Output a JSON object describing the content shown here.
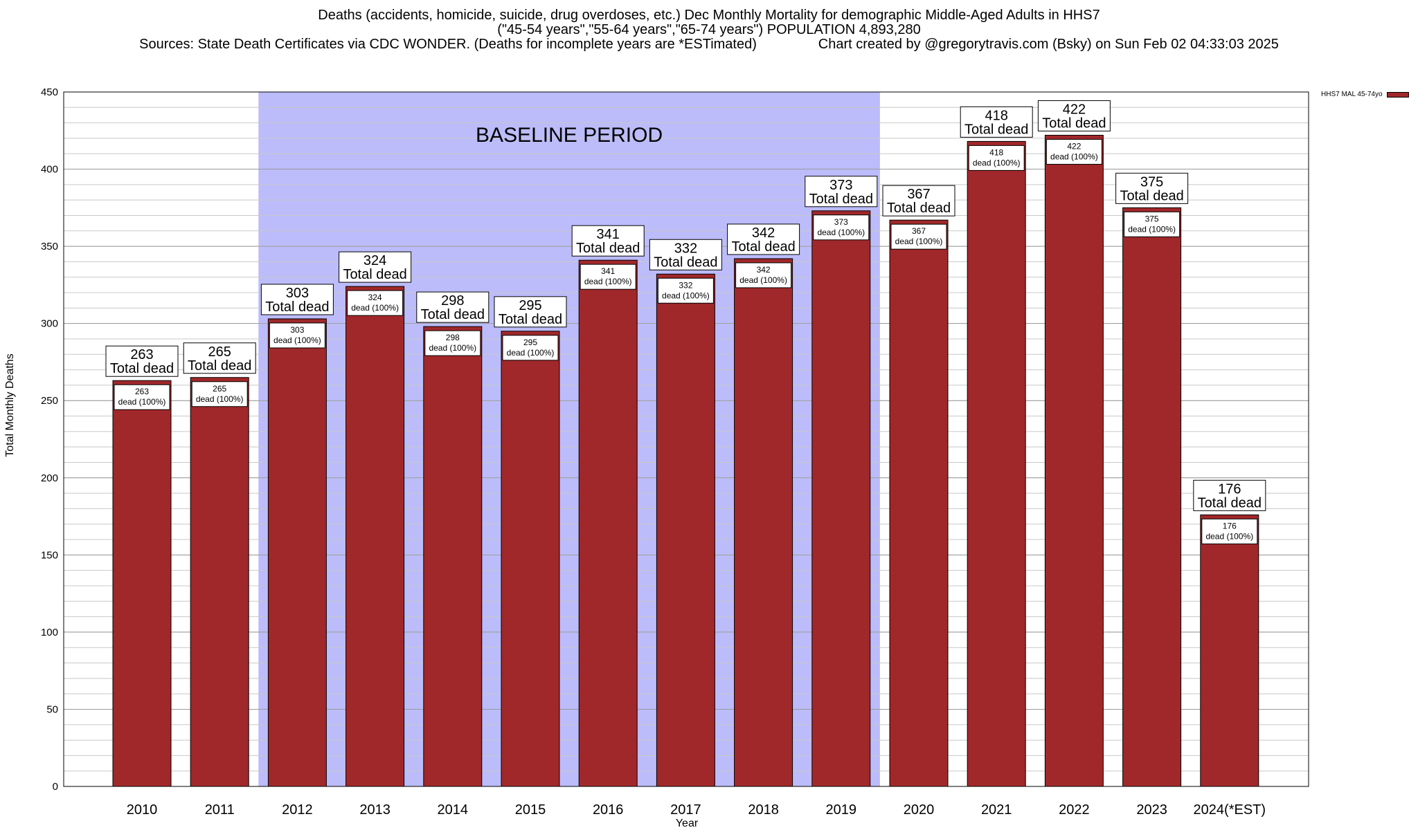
{
  "title_lines": [
    "Deaths (accidents, homicide, suicide, drug overdoses, etc.) Dec Monthly Mortality for demographic Middle-Aged Adults in HHS7",
    "(\"45-54 years\",\"55-64 years\",\"65-74 years\") POPULATION 4,893,280",
    "Sources: State Death Certificates via CDC WONDER. (Deaths for incomplete years are *ESTimated)                Chart created by @gregorytravis.com (Bsky) on Sun Feb 02 04:33:03 2025"
  ],
  "chart_data": {
    "type": "bar",
    "categories": [
      "2010",
      "2011",
      "2012",
      "2013",
      "2014",
      "2015",
      "2016",
      "2017",
      "2018",
      "2019",
      "2020",
      "2021",
      "2022",
      "2023",
      "2024(*EST)"
    ],
    "series": [
      {
        "name": "HHS7 MAL 45-74yo",
        "color": "#a0282a",
        "values": [
          263,
          265,
          303,
          324,
          298,
          295,
          341,
          332,
          342,
          373,
          367,
          418,
          422,
          375,
          176
        ]
      }
    ],
    "bar_label_suffix": "Total dead",
    "inner_label_suffix": "dead (100%)",
    "ylabel": "Total Monthly Deaths",
    "xlabel": "Year",
    "ylim": [
      0,
      450
    ],
    "yticks": [
      0,
      50,
      100,
      150,
      200,
      250,
      300,
      350,
      400,
      450
    ],
    "minor_grid_step": 10,
    "baseline_period": {
      "label": "BASELINE PERIOD",
      "from": "2012",
      "to": "2019",
      "color": "#bcbcfb"
    },
    "legend_position": "top-right",
    "grid": true
  }
}
